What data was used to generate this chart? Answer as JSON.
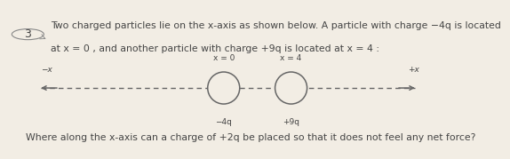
{
  "problem_number": "3",
  "title_line1": "Two charged particles lie on the x-axis as shown below. A particle with charge −4q is located",
  "title_line2": "at x = 0 , and another particle with charge +9q is located at x = 4 :",
  "question": "Where along the x-axis can a charge of +2q be placed so that it does not feel any net force?",
  "neg_x_label": "−x",
  "pos_x_label": "+x",
  "particle1_label": "−4q",
  "particle1_top_label": "x = 0",
  "particle2_label": "+9q",
  "particle2_top_label": "x = 4",
  "line_color": "#666666",
  "text_color": "#444444",
  "bg_color": "#f2ede4",
  "font_size_body": 7.8,
  "font_size_axis": 6.5,
  "font_size_number": 9.0
}
